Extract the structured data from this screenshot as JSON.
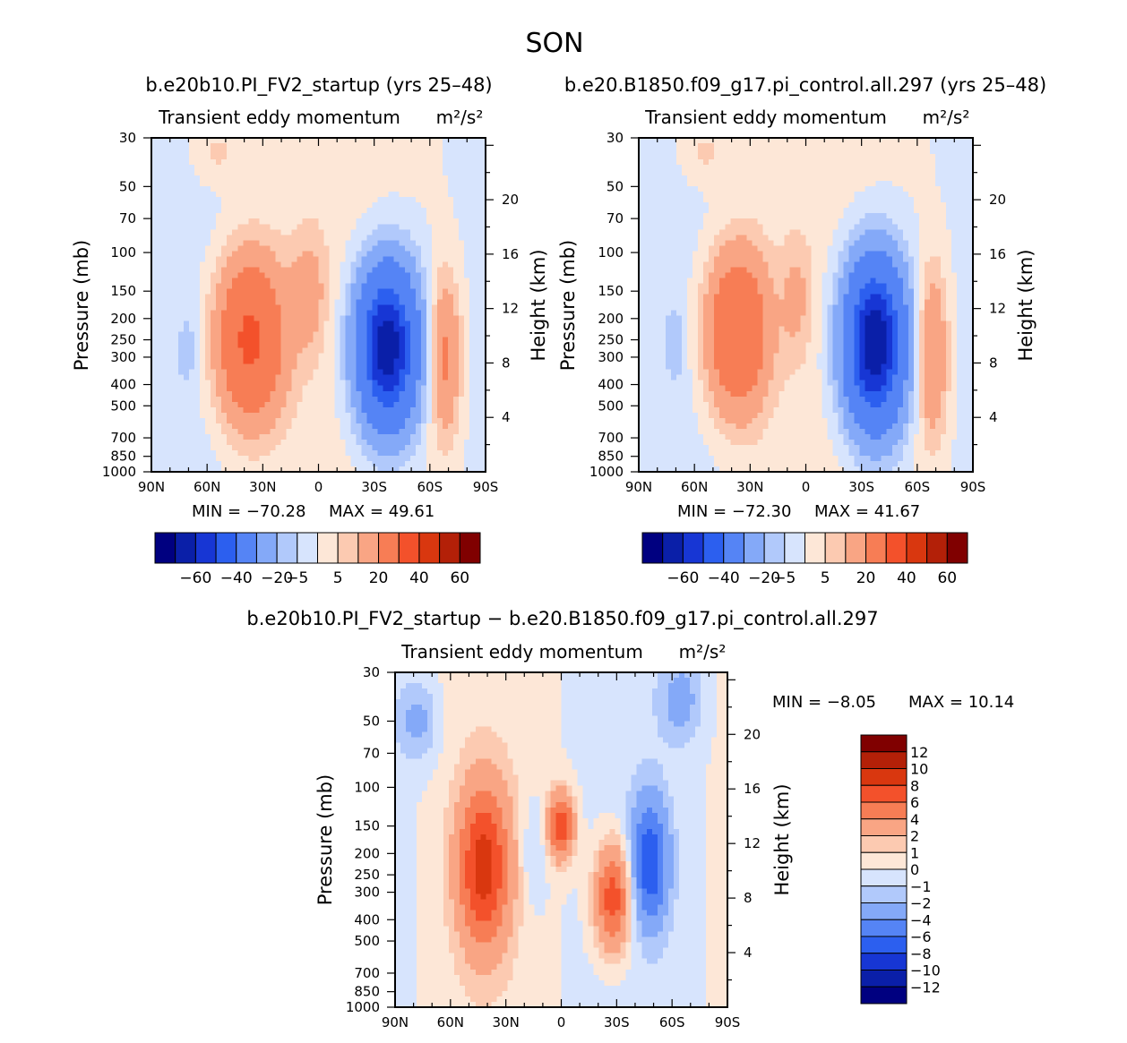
{
  "figure": {
    "title": "SON",
    "quantity": "Transient eddy momentum",
    "units": "m²/s²"
  },
  "chart_data": [
    {
      "type": "heatmap",
      "id": "panel1",
      "title": "b.e20b10.PI_FV2_startup (yrs 25–48)",
      "subtitle": "Transient eddy momentum",
      "units": "m²/s²",
      "xlabel": "",
      "ylabel": "Pressure (mb)",
      "ylabel_right": "Height (km)",
      "x_ticks": [
        "90N",
        "60N",
        "30N",
        "0",
        "30S",
        "60S",
        "90S"
      ],
      "y_ticks": [
        30,
        50,
        70,
        100,
        150,
        200,
        250,
        300,
        400,
        500,
        700,
        850,
        1000
      ],
      "y_ticks_right": [
        20,
        16,
        12,
        8,
        4
      ],
      "ylim": [
        1000,
        30
      ],
      "xlim": [
        90,
        -90
      ],
      "min_label": "MIN =  −70.28",
      "max_label": "MAX =   49.61",
      "min": -70.28,
      "max": 49.61,
      "contour_levels": [
        -70,
        -60,
        -50,
        -40,
        -30,
        -20,
        -10,
        -5,
        0,
        5,
        10,
        20,
        30,
        40,
        50,
        60,
        70
      ],
      "colorbar_labels": [
        "−60",
        "−40",
        "−20",
        "−5",
        "5",
        "20",
        "40",
        "60"
      ],
      "features": [
        {
          "lat": 37,
          "p": 250,
          "peak": 45,
          "lat_width": 13,
          "p_spread": 0.62
        },
        {
          "lat": 5,
          "p": 150,
          "peak": 12,
          "lat_width": 7,
          "p_spread": 0.45
        },
        {
          "lat": -37,
          "p": 270,
          "peak": -70,
          "lat_width": 12,
          "p_spread": 0.62
        },
        {
          "lat": -68,
          "p": 300,
          "peak": 24,
          "lat_width": 6,
          "p_spread": 0.6
        },
        {
          "lat": 55,
          "p": 35,
          "peak": 8,
          "lat_width": 10,
          "p_spread": 0.25
        },
        {
          "lat": 70,
          "p": 280,
          "peak": -6,
          "lat_width": 4,
          "p_spread": 0.3
        }
      ]
    },
    {
      "type": "heatmap",
      "id": "panel2",
      "title": "b.e20.B1850.f09_g17.pi_control.all.297 (yrs 25–48)",
      "subtitle": "Transient eddy momentum",
      "units": "m²/s²",
      "xlabel": "",
      "ylabel": "Pressure (mb)",
      "ylabel_right": "Height (km)",
      "x_ticks": [
        "90N",
        "60N",
        "30N",
        "0",
        "30S",
        "60S",
        "90S"
      ],
      "y_ticks": [
        30,
        50,
        70,
        100,
        150,
        200,
        250,
        300,
        400,
        500,
        700,
        850,
        1000
      ],
      "y_ticks_right": [
        20,
        16,
        12,
        8,
        4
      ],
      "ylim": [
        1000,
        30
      ],
      "xlim": [
        90,
        -90
      ],
      "min_label": "MIN =  −72.30",
      "max_label": "MAX =   41.67",
      "min": -72.3,
      "max": 41.67,
      "contour_levels": [
        -70,
        -60,
        -50,
        -40,
        -30,
        -20,
        -10,
        -5,
        0,
        5,
        10,
        20,
        30,
        40,
        50,
        60,
        70
      ],
      "colorbar_labels": [
        "−60",
        "−40",
        "−20",
        "−5",
        "5",
        "20",
        "40",
        "60"
      ],
      "features": [
        {
          "lat": 37,
          "p": 230,
          "peak": 40,
          "lat_width": 12,
          "p_spread": 0.62
        },
        {
          "lat": 5,
          "p": 160,
          "peak": 10,
          "lat_width": 6,
          "p_spread": 0.45
        },
        {
          "lat": -37,
          "p": 260,
          "peak": -72,
          "lat_width": 12,
          "p_spread": 0.65
        },
        {
          "lat": -68,
          "p": 290,
          "peak": 22,
          "lat_width": 6,
          "p_spread": 0.65
        },
        {
          "lat": 55,
          "p": 35,
          "peak": 8,
          "lat_width": 10,
          "p_spread": 0.25
        },
        {
          "lat": 70,
          "p": 260,
          "peak": -6,
          "lat_width": 4,
          "p_spread": 0.3
        }
      ]
    },
    {
      "type": "heatmap",
      "id": "panel3",
      "title": "b.e20b10.PI_FV2_startup − b.e20.B1850.f09_g17.pi_control.all.297",
      "subtitle": "Transient eddy momentum",
      "units": "m²/s²",
      "xlabel": "",
      "ylabel": "Pressure (mb)",
      "ylabel_right": "Height (km)",
      "x_ticks": [
        "90N",
        "60N",
        "30N",
        "0",
        "30S",
        "60S",
        "90S"
      ],
      "y_ticks": [
        30,
        50,
        70,
        100,
        150,
        200,
        250,
        300,
        400,
        500,
        700,
        850,
        1000
      ],
      "y_ticks_right": [
        20,
        16,
        12,
        8,
        4
      ],
      "ylim": [
        1000,
        30
      ],
      "xlim": [
        90,
        -90
      ],
      "min_label": "MIN =   −8.05",
      "max_label": "MAX =   10.14",
      "min": -8.05,
      "max": 10.14,
      "contour_levels": [
        -12,
        -10,
        -8,
        -6,
        -4,
        -2,
        -1,
        0,
        1,
        2,
        4,
        6,
        8,
        10,
        12
      ],
      "colorbar_labels": [
        "12",
        "10",
        "8",
        "6",
        "4",
        "2",
        "1",
        "0",
        "−1",
        "−2",
        "−4",
        "−6",
        "−8",
        "−10",
        "−12"
      ],
      "features": [
        {
          "lat": 42,
          "p": 230,
          "peak": 8.5,
          "lat_width": 10,
          "p_spread": 0.6
        },
        {
          "lat": 0,
          "p": 150,
          "peak": 7.5,
          "lat_width": 5,
          "p_spread": 0.25
        },
        {
          "lat": -28,
          "p": 320,
          "peak": 7.5,
          "lat_width": 7,
          "p_spread": 0.4
        },
        {
          "lat": -48,
          "p": 220,
          "peak": -7.5,
          "lat_width": 7,
          "p_spread": 0.45
        },
        {
          "lat": -65,
          "p": 40,
          "peak": -2.5,
          "lat_width": 8,
          "p_spread": 0.3
        },
        {
          "lat": 78,
          "p": 50,
          "peak": -2.5,
          "lat_width": 8,
          "p_spread": 0.3
        },
        {
          "lat": 15,
          "p": 200,
          "peak": -1.5,
          "lat_width": 5,
          "p_spread": 0.4
        }
      ]
    }
  ],
  "palettes": {
    "main": [
      "#000080",
      "#0a1fa8",
      "#1736d4",
      "#2c5fef",
      "#5584f5",
      "#84a9f8",
      "#b1c9fb",
      "#d7e4fd",
      "#fde7d7",
      "#fccab1",
      "#f9a584",
      "#f77d55",
      "#f3512b",
      "#d9370f",
      "#b32008",
      "#800000"
    ],
    "diff": [
      "#000080",
      "#0a1fa8",
      "#1736d4",
      "#2c5fef",
      "#5584f5",
      "#84a9f8",
      "#b1c9fb",
      "#d7e4fd",
      "#fde7d7",
      "#fccab1",
      "#f9a584",
      "#f77d55",
      "#f3512b",
      "#d9370f",
      "#b32008",
      "#800000"
    ]
  }
}
